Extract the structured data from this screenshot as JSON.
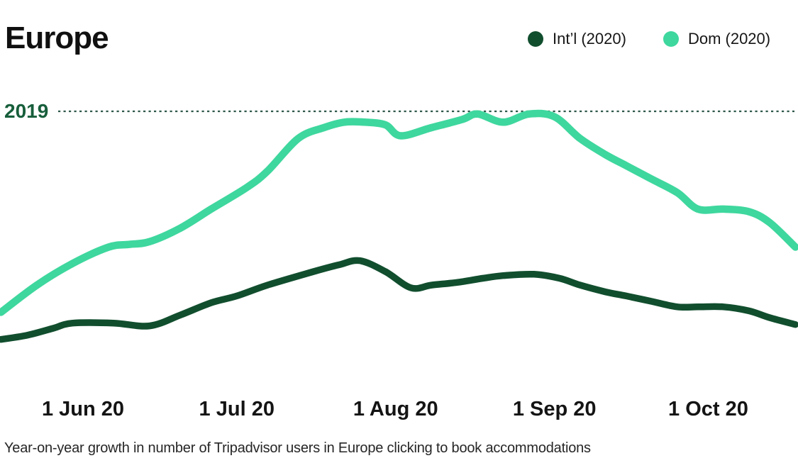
{
  "chart_data": {
    "type": "line",
    "title": "Europe",
    "caption": "Year-on-year growth in number of Tripadvisor users in Europe clicking to book accommodations",
    "y_unit": "index vs 2019 level (2019 = 100), estimated from plot",
    "baseline": {
      "label": "2019",
      "value": 100,
      "line_color": "#2e574a",
      "label_color": "#175e3b"
    },
    "x_ticks": [
      {
        "label": "1 Jun 20",
        "day": 0
      },
      {
        "label": "1 Jul 20",
        "day": 30
      },
      {
        "label": "1 Aug 20",
        "day": 61
      },
      {
        "label": "1 Sep 20",
        "day": 92
      },
      {
        "label": "1 Oct 20",
        "day": 122
      }
    ],
    "legend_position": "top-right",
    "grid": false,
    "series": [
      {
        "name": "Int’l (2020)",
        "color": "#114e2e",
        "stroke_width": 9.5,
        "points": [
          [
            -16,
            16
          ],
          [
            -11,
            17.5
          ],
          [
            -6,
            20
          ],
          [
            -2,
            22
          ],
          [
            6,
            22
          ],
          [
            13,
            21
          ],
          [
            19,
            25
          ],
          [
            25,
            29.5
          ],
          [
            30,
            32
          ],
          [
            36,
            36
          ],
          [
            45,
            41
          ],
          [
            50,
            43.5
          ],
          [
            54,
            45
          ],
          [
            59,
            41
          ],
          [
            64,
            35
          ],
          [
            68,
            36
          ],
          [
            73,
            37
          ],
          [
            78,
            38.5
          ],
          [
            82,
            39.5
          ],
          [
            88,
            40
          ],
          [
            93,
            38.5
          ],
          [
            97,
            36
          ],
          [
            102,
            33.5
          ],
          [
            106,
            32
          ],
          [
            111,
            30
          ],
          [
            116,
            28
          ],
          [
            120,
            28
          ],
          [
            125,
            28
          ],
          [
            130,
            26.5
          ],
          [
            134,
            24
          ],
          [
            139,
            21.5
          ]
        ]
      },
      {
        "name": "Dom (2020)",
        "color": "#3ed79e",
        "stroke_width": 10.5,
        "points": [
          [
            -16,
            26
          ],
          [
            -9,
            36
          ],
          [
            -2,
            44
          ],
          [
            5,
            50
          ],
          [
            9,
            51
          ],
          [
            13,
            52
          ],
          [
            19,
            57
          ],
          [
            25,
            64
          ],
          [
            32,
            72
          ],
          [
            36,
            78
          ],
          [
            42,
            90
          ],
          [
            47,
            94
          ],
          [
            51,
            96
          ],
          [
            55,
            96
          ],
          [
            59,
            95
          ],
          [
            62,
            91
          ],
          [
            68,
            94
          ],
          [
            74,
            97
          ],
          [
            77,
            99
          ],
          [
            82,
            96
          ],
          [
            87,
            99
          ],
          [
            92,
            98
          ],
          [
            97,
            90
          ],
          [
            102,
            84
          ],
          [
            106,
            80
          ],
          [
            111,
            75
          ],
          [
            116,
            70
          ],
          [
            120,
            64
          ],
          [
            125,
            64
          ],
          [
            130,
            63
          ],
          [
            134,
            59
          ],
          [
            139,
            50
          ]
        ]
      }
    ]
  }
}
